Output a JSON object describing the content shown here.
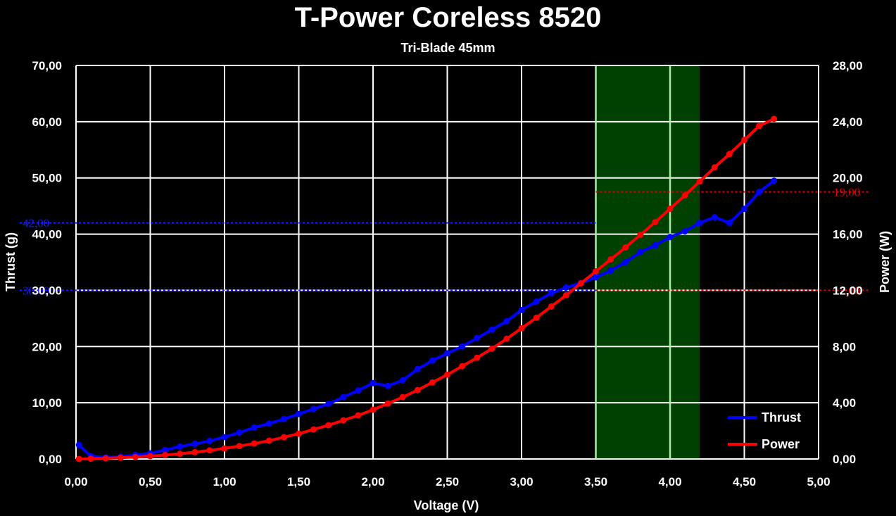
{
  "chart_data": {
    "type": "line",
    "title": "T-Power Coreless 8520",
    "subtitle": "Tri-Blade 45mm",
    "xlabel": "Voltage (V)",
    "ylabel": "Thrust (g)",
    "y2label": "Power (W)",
    "xlim": [
      0,
      5
    ],
    "ylim": [
      0,
      70
    ],
    "y2lim": [
      0,
      28
    ],
    "x_ticks": [
      "0,00",
      "0,50",
      "1,00",
      "1,50",
      "2,00",
      "2,50",
      "3,00",
      "3,50",
      "4,00",
      "4,50",
      "5,00"
    ],
    "y_ticks": [
      "0,00",
      "10,00",
      "20,00",
      "30,00",
      "40,00",
      "50,00",
      "60,00",
      "70,00"
    ],
    "y2_ticks": [
      "0,00",
      "4,00",
      "8,00",
      "12,00",
      "16,00",
      "20,00",
      "24,00",
      "28,00"
    ],
    "grid": true,
    "legend_position": "bottom-right",
    "highlight_band": {
      "x_start": 3.5,
      "x_end": 4.2,
      "color": "#004000",
      "inner_line_x": 4.0
    },
    "reference_lines": [
      {
        "axis": "left",
        "value": 30,
        "label": "30,00",
        "color": "#1a1aff"
      },
      {
        "axis": "left",
        "value": 42,
        "label": "42,00",
        "color": "#1a1aff"
      },
      {
        "axis": "right",
        "value": 12,
        "label": "12,00",
        "color": "#e00000"
      },
      {
        "axis": "right",
        "value": 19,
        "label": "19,00",
        "color": "#e00000"
      }
    ],
    "series": [
      {
        "name": "Thrust",
        "axis": "left",
        "color": "#0000ff",
        "x": [
          0.02,
          0.1,
          0.2,
          0.3,
          0.4,
          0.5,
          0.6,
          0.7,
          0.8,
          0.9,
          1.0,
          1.1,
          1.2,
          1.3,
          1.4,
          1.5,
          1.6,
          1.7,
          1.8,
          1.9,
          2.0,
          2.1,
          2.2,
          2.3,
          2.4,
          2.5,
          2.6,
          2.7,
          2.8,
          2.9,
          3.0,
          3.1,
          3.2,
          3.3,
          3.4,
          3.5,
          3.6,
          3.7,
          3.8,
          3.9,
          4.0,
          4.1,
          4.2,
          4.3,
          4.4,
          4.5,
          4.6,
          4.7
        ],
        "values": [
          2.5,
          0.5,
          0.3,
          0.4,
          0.7,
          1.0,
          1.6,
          2.2,
          2.7,
          3.2,
          3.9,
          4.7,
          5.6,
          6.3,
          7.1,
          8.0,
          8.9,
          9.8,
          11.0,
          12.2,
          13.5,
          13.0,
          14.0,
          16.0,
          17.5,
          18.8,
          20.0,
          21.5,
          23.0,
          24.5,
          26.5,
          28.0,
          29.5,
          30.5,
          31.3,
          32.3,
          33.5,
          35.0,
          36.8,
          38.0,
          39.5,
          40.5,
          42.0,
          43.0,
          42.0,
          44.5,
          47.5,
          49.5
        ]
      },
      {
        "name": "Power",
        "axis": "right",
        "color": "#ff0000",
        "x": [
          0.02,
          0.1,
          0.2,
          0.3,
          0.4,
          0.5,
          0.6,
          0.7,
          0.8,
          0.9,
          1.0,
          1.1,
          1.2,
          1.3,
          1.4,
          1.5,
          1.6,
          1.7,
          1.8,
          1.9,
          2.0,
          2.1,
          2.2,
          2.3,
          2.4,
          2.5,
          2.6,
          2.7,
          2.8,
          2.9,
          3.0,
          3.1,
          3.2,
          3.3,
          3.4,
          3.5,
          3.6,
          3.7,
          3.8,
          3.9,
          4.0,
          4.1,
          4.2,
          4.3,
          4.4,
          4.5,
          4.6,
          4.7
        ],
        "values": [
          0.0,
          0.02,
          0.05,
          0.09,
          0.14,
          0.2,
          0.28,
          0.37,
          0.48,
          0.61,
          0.75,
          0.92,
          1.1,
          1.3,
          1.55,
          1.8,
          2.1,
          2.4,
          2.75,
          3.1,
          3.5,
          3.95,
          4.4,
          4.9,
          5.45,
          6.0,
          6.6,
          7.2,
          7.85,
          8.55,
          9.3,
          10.05,
          10.85,
          11.65,
          12.5,
          13.35,
          14.2,
          15.05,
          15.95,
          16.85,
          17.8,
          18.75,
          19.75,
          20.75,
          21.7,
          22.7,
          23.7,
          24.2
        ]
      }
    ]
  }
}
